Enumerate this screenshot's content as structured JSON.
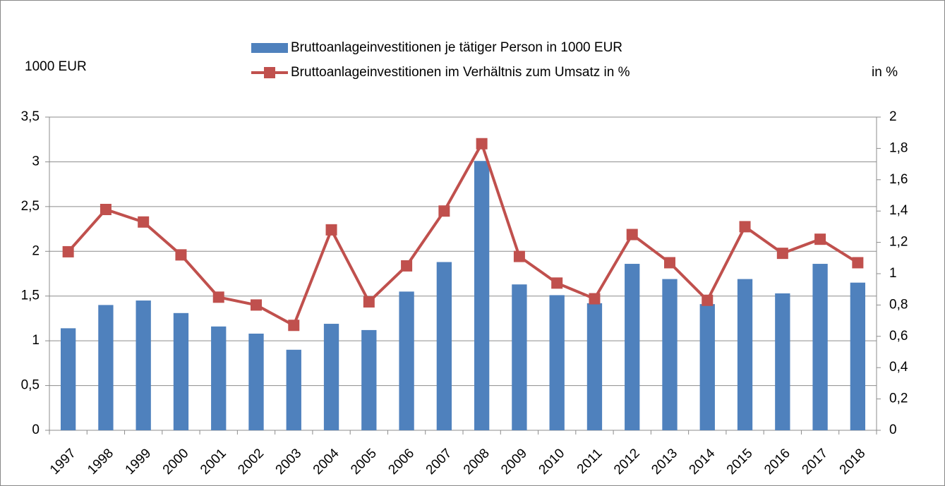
{
  "chart_data": {
    "type": "bar_line",
    "y_label": "1000 EUR",
    "y2_label": "in %",
    "categories": [
      "1997",
      "1998",
      "1999",
      "2000",
      "2001",
      "2002",
      "2003",
      "2004",
      "2005",
      "2006",
      "2007",
      "2008",
      "2009",
      "2010",
      "2011",
      "2012",
      "2013",
      "2014",
      "2015",
      "2016",
      "2017",
      "2018"
    ],
    "series": [
      {
        "name": "Bruttoanlageinvestitionen je tätiger Person in 1000 EUR",
        "color": "#4f81bd",
        "type": "bar",
        "values": [
          1.14,
          1.4,
          1.45,
          1.31,
          1.16,
          1.08,
          0.9,
          1.19,
          1.12,
          1.55,
          1.88,
          3.01,
          1.63,
          1.51,
          1.42,
          1.86,
          1.69,
          1.41,
          1.69,
          1.53,
          1.86,
          1.65
        ]
      },
      {
        "name": "Bruttoanlageinvestitionen im Verhältnis zum Umsatz in %",
        "color": "#c0504d",
        "type": "line",
        "axis": "y2",
        "values": [
          1.14,
          1.41,
          1.33,
          1.12,
          0.85,
          0.8,
          0.67,
          1.28,
          0.82,
          1.05,
          1.4,
          1.83,
          1.11,
          0.94,
          0.84,
          1.25,
          1.07,
          0.83,
          1.3,
          1.13,
          1.22,
          1.07
        ]
      }
    ],
    "ylim": [
      0,
      3.5
    ],
    "yticks": [
      0,
      {
        "value": 0.5,
        "label": "0,5"
      },
      1,
      {
        "value": 1.5,
        "label": "1,5"
      },
      2,
      {
        "value": 2.5,
        "label": "2,5"
      },
      3,
      {
        "value": 3.5,
        "label": "3,5"
      }
    ],
    "y2lim": [
      0,
      2
    ],
    "y2ticks": [
      0,
      {
        "value": 0.2,
        "label": "0,2"
      },
      {
        "value": 0.4,
        "label": "0,4"
      },
      {
        "value": 0.6,
        "label": "0,6"
      },
      {
        "value": 0.8,
        "label": "0,8"
      },
      1,
      {
        "value": 1.2,
        "label": "1,2"
      },
      {
        "value": 1.4,
        "label": "1,4"
      },
      {
        "value": 1.6,
        "label": "1,6"
      },
      {
        "value": 1.8,
        "label": "1,8"
      },
      2
    ],
    "grid": true,
    "legend": "top"
  }
}
